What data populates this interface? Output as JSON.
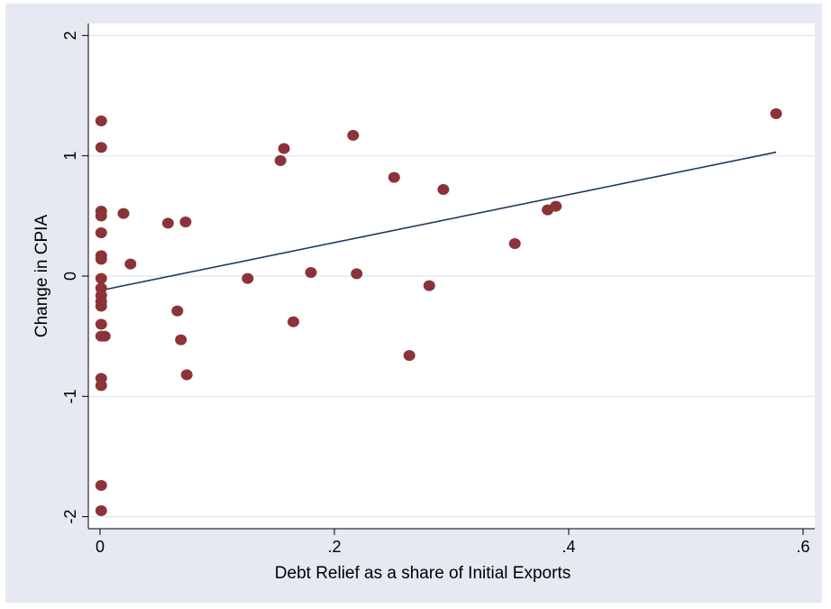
{
  "chart_data": {
    "type": "scatter",
    "title": "",
    "xlabel": "Debt Relief as a share of Initial Exports",
    "ylabel": "Change in CPIA",
    "xlim": [
      -0.01,
      0.61
    ],
    "ylim": [
      -2.1,
      2.1
    ],
    "x_ticks": [
      0,
      0.2,
      0.4,
      0.6
    ],
    "x_tick_labels": [
      "0",
      ".2",
      ".4",
      ".6"
    ],
    "y_ticks": [
      -2,
      -1,
      0,
      1,
      2
    ],
    "y_tick_labels": [
      "-2",
      "-1",
      "0",
      "1",
      "2"
    ],
    "grid": "horizontal",
    "colors": {
      "background": "#e6e9f2",
      "plot_area": "#ffffff",
      "gridline": "#e6e9f2",
      "marker": "#8b3338",
      "fit_line": "#1f3a5f"
    },
    "series": [
      {
        "type": "scatter",
        "points": [
          [
            0.001,
            1.29
          ],
          [
            0.001,
            1.07
          ],
          [
            0.001,
            0.54
          ],
          [
            0.001,
            0.5
          ],
          [
            0.001,
            0.36
          ],
          [
            0.001,
            0.17
          ],
          [
            0.001,
            0.14
          ],
          [
            0.001,
            -0.02
          ],
          [
            0.001,
            -0.1
          ],
          [
            0.001,
            -0.16
          ],
          [
            0.001,
            -0.21
          ],
          [
            0.001,
            -0.25
          ],
          [
            0.001,
            -0.4
          ],
          [
            0.001,
            -0.5
          ],
          [
            0.004,
            -0.5
          ],
          [
            0.001,
            -0.85
          ],
          [
            0.001,
            -0.91
          ],
          [
            0.001,
            -1.74
          ],
          [
            0.001,
            -1.95
          ],
          [
            0.02,
            0.52
          ],
          [
            0.026,
            0.1
          ],
          [
            0.058,
            0.44
          ],
          [
            0.066,
            -0.29
          ],
          [
            0.069,
            -0.53
          ],
          [
            0.073,
            0.45
          ],
          [
            0.074,
            -0.82
          ],
          [
            0.126,
            -0.02
          ],
          [
            0.154,
            0.96
          ],
          [
            0.157,
            1.06
          ],
          [
            0.165,
            -0.38
          ],
          [
            0.18,
            0.03
          ],
          [
            0.216,
            1.17
          ],
          [
            0.219,
            0.02
          ],
          [
            0.251,
            0.82
          ],
          [
            0.264,
            -0.66
          ],
          [
            0.281,
            -0.08
          ],
          [
            0.293,
            0.72
          ],
          [
            0.354,
            0.27
          ],
          [
            0.382,
            0.55
          ],
          [
            0.389,
            0.58
          ],
          [
            0.577,
            1.35
          ]
        ]
      },
      {
        "type": "line",
        "points": [
          [
            0.0,
            -0.12
          ],
          [
            0.577,
            1.03
          ]
        ]
      }
    ]
  }
}
